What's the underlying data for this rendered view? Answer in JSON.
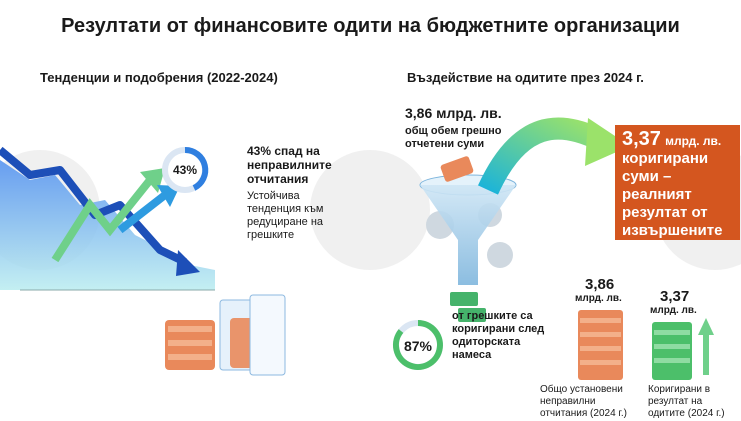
{
  "title": "Резултати от финансовите одити на бюджетните организации",
  "left": {
    "heading": "Тенденции и подобрения (2022-2024)",
    "ring": "43%",
    "stat_title": "43% спад на неправилните отчитания",
    "stat_text": "Устойчива тенденция към редуциране на грешките"
  },
  "right": {
    "heading": "Въздействие на одитите през 2024 г.",
    "total_amount": "3,86 млрд. лв.",
    "total_text": "общ обем грешно отчетени суми",
    "highlight_amount": "3,37",
    "highlight_unit": "млрд. лв.",
    "highlight_text": "коригирани суми – реалният резултат от извършените одити",
    "ring": "87%",
    "ring_text": "от грешките са коригирани след одиторската намеса",
    "bars": [
      {
        "amount": "3,86",
        "unit": "млрд. лв.",
        "caption": "Общо установени неправилни отчитания (2024 г.)"
      },
      {
        "amount": "3,37",
        "unit": "млрд. лв.",
        "caption": "Коригирани в резултат на одитите (2024 г.)"
      }
    ]
  }
}
